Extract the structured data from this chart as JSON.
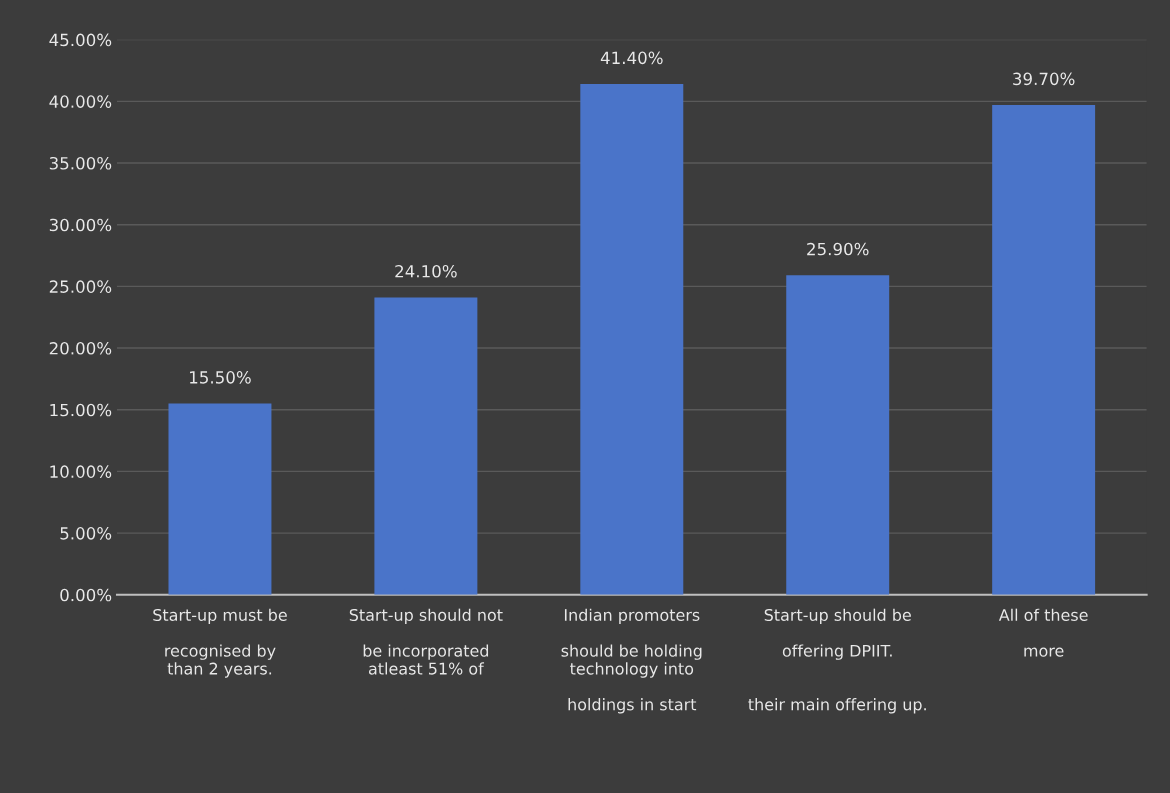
{
  "chart_data": {
    "type": "bar",
    "categories": [
      "Start-up must be\n\nrecognised by\nthan 2 years.",
      "Start-up should not\n\nbe incorporated\natleast 51% of",
      "Indian promoters\n\nshould be holding\ntechnology into\n\nholdings in start",
      "Start-up should be\n\noffering DPIIT.\n\n\ntheir main offering up.",
      "All of these\n\nmore"
    ],
    "values": [
      15.5,
      24.1,
      41.4,
      25.9,
      39.7
    ],
    "value_labels": [
      "15.50%",
      "24.10%",
      "41.40%",
      "25.90%",
      "39.70%"
    ],
    "color": "#4a74c9",
    "ylim": [
      0,
      45
    ],
    "yticks": [
      {
        "value": 0,
        "label": "0.00%"
      },
      {
        "value": 5,
        "label": "5.00%"
      },
      {
        "value": 10,
        "label": "10.00%"
      },
      {
        "value": 15,
        "label": "15.00%"
      },
      {
        "value": 20,
        "label": "20.00%"
      },
      {
        "value": 25,
        "label": "25.00%"
      },
      {
        "value": 30,
        "label": "30.00%"
      },
      {
        "value": 35,
        "label": "35.00%"
      },
      {
        "value": 40,
        "label": "40.00%"
      },
      {
        "value": 45,
        "label": "45.00%"
      }
    ],
    "grid": "y"
  }
}
